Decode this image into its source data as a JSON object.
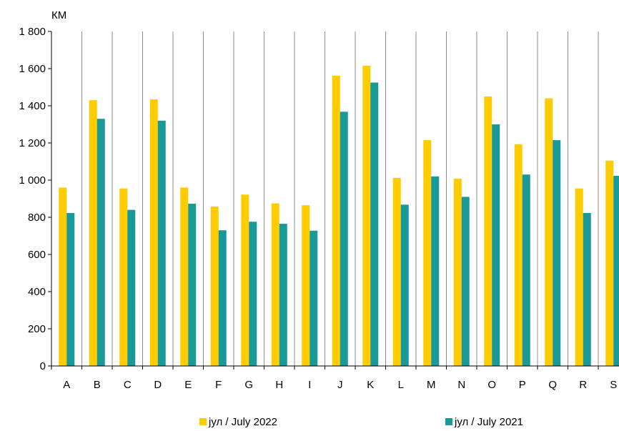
{
  "chart_data": {
    "type": "bar",
    "unit_label": "КМ",
    "categories": [
      "A",
      "B",
      "C",
      "D",
      "E",
      "F",
      "G",
      "H",
      "I",
      "J",
      "K",
      "L",
      "M",
      "N",
      "O",
      "P",
      "Q",
      "R",
      "S"
    ],
    "ylim": [
      0,
      1800
    ],
    "yticks": [
      0,
      200,
      400,
      600,
      800,
      1000,
      1200,
      1400,
      1600,
      1800
    ],
    "ytick_labels": [
      "0",
      "200",
      "400",
      "600",
      "800",
      "1 000",
      "1 200",
      "1 400",
      "1 600",
      "1 800"
    ],
    "grid": "vertical",
    "legend_position": "bottom",
    "series": [
      {
        "name": "јул / July 2022",
        "color": "#FFCC00",
        "values": [
          960,
          1430,
          955,
          1435,
          960,
          858,
          922,
          875,
          865,
          1562,
          1615,
          1012,
          1215,
          1008,
          1450,
          1193,
          1440,
          955,
          1105
        ]
      },
      {
        "name": "јул / July 2021",
        "color": "#199A98",
        "values": [
          823,
          1330,
          840,
          1320,
          873,
          730,
          776,
          765,
          728,
          1368,
          1525,
          868,
          1020,
          910,
          1300,
          1030,
          1215,
          823,
          1023
        ]
      }
    ]
  }
}
